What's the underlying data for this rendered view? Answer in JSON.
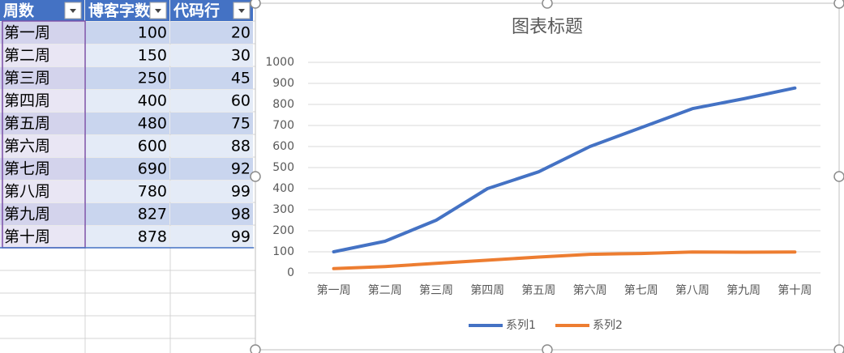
{
  "table": {
    "header": [
      "周数",
      "博客字数",
      "代码行"
    ],
    "rows": [
      [
        "第一周",
        100,
        20
      ],
      [
        "第二周",
        150,
        30
      ],
      [
        "第三周",
        250,
        45
      ],
      [
        "第四周",
        400,
        60
      ],
      [
        "第五周",
        480,
        75
      ],
      [
        "第六周",
        600,
        88
      ],
      [
        "第七周",
        690,
        92
      ],
      [
        "第八周",
        780,
        99
      ],
      [
        "第九周",
        827,
        98
      ],
      [
        "第十周",
        878,
        99
      ]
    ]
  },
  "chart_data": {
    "type": "line",
    "title": "图表标题",
    "categories": [
      "第一周",
      "第二周",
      "第三周",
      "第四周",
      "第五周",
      "第六周",
      "第七周",
      "第八周",
      "第九周",
      "第十周"
    ],
    "series": [
      {
        "name": "系列1",
        "color": "#4472c4",
        "values": [
          100,
          150,
          250,
          400,
          480,
          600,
          690,
          780,
          827,
          878
        ]
      },
      {
        "name": "系列2",
        "color": "#ed7d31",
        "values": [
          20,
          30,
          45,
          60,
          75,
          88,
          92,
          99,
          98,
          99
        ]
      }
    ],
    "ylim": [
      0,
      1000
    ],
    "yticks": [
      0,
      100,
      200,
      300,
      400,
      500,
      600,
      700,
      800,
      900,
      1000
    ],
    "grid": true,
    "legend": "bottom"
  }
}
